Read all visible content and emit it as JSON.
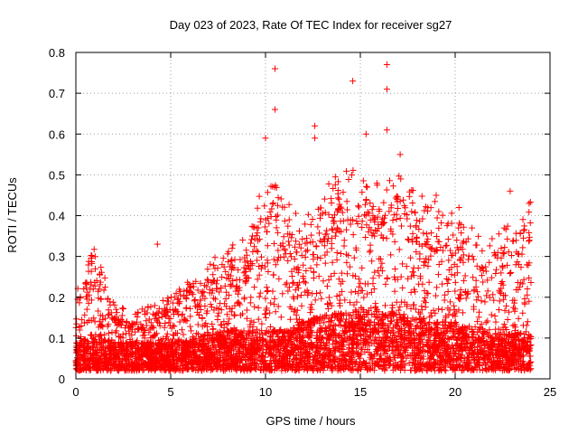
{
  "chart_data": {
    "type": "scatter",
    "title": "Day 023 of 2023, Rate Of TEC Index for receiver sg27",
    "xlabel": "GPS time / hours",
    "ylabel": "ROTI / TECUs",
    "xlim": [
      0,
      25
    ],
    "ylim": [
      0,
      0.8
    ],
    "xticks": [
      0,
      5,
      10,
      15,
      20,
      25
    ],
    "yticks": [
      0,
      0.1,
      0.2,
      0.3,
      0.4,
      0.5,
      0.6,
      0.7,
      0.8
    ],
    "xtick_labels": [
      "0",
      "5",
      "10",
      "15",
      "20",
      "25"
    ],
    "ytick_labels": [
      "0",
      "0.1",
      "0.2",
      "0.3",
      "0.4",
      "0.5",
      "0.6",
      "0.7",
      "0.8"
    ],
    "grid": true,
    "marker": "+",
    "color": "#ff0000",
    "envelope": [
      {
        "x": 0.0,
        "base": 0.05,
        "upper": 0.2
      },
      {
        "x": 1.0,
        "base": 0.06,
        "upper": 0.28
      },
      {
        "x": 2.0,
        "base": 0.05,
        "upper": 0.16
      },
      {
        "x": 3.0,
        "base": 0.05,
        "upper": 0.14
      },
      {
        "x": 4.0,
        "base": 0.05,
        "upper": 0.16
      },
      {
        "x": 5.0,
        "base": 0.05,
        "upper": 0.18
      },
      {
        "x": 6.0,
        "base": 0.06,
        "upper": 0.22
      },
      {
        "x": 7.0,
        "base": 0.07,
        "upper": 0.25
      },
      {
        "x": 8.0,
        "base": 0.08,
        "upper": 0.28
      },
      {
        "x": 9.0,
        "base": 0.08,
        "upper": 0.3
      },
      {
        "x": 10.0,
        "base": 0.08,
        "upper": 0.45
      },
      {
        "x": 11.0,
        "base": 0.08,
        "upper": 0.38
      },
      {
        "x": 12.0,
        "base": 0.1,
        "upper": 0.35
      },
      {
        "x": 13.0,
        "base": 0.12,
        "upper": 0.4
      },
      {
        "x": 14.0,
        "base": 0.12,
        "upper": 0.45
      },
      {
        "x": 15.0,
        "base": 0.13,
        "upper": 0.45
      },
      {
        "x": 16.0,
        "base": 0.13,
        "upper": 0.42
      },
      {
        "x": 17.0,
        "base": 0.12,
        "upper": 0.45
      },
      {
        "x": 18.0,
        "base": 0.11,
        "upper": 0.4
      },
      {
        "x": 19.0,
        "base": 0.1,
        "upper": 0.38
      },
      {
        "x": 20.0,
        "base": 0.1,
        "upper": 0.35
      },
      {
        "x": 21.0,
        "base": 0.08,
        "upper": 0.32
      },
      {
        "x": 22.0,
        "base": 0.07,
        "upper": 0.3
      },
      {
        "x": 23.0,
        "base": 0.07,
        "upper": 0.35
      },
      {
        "x": 24.0,
        "base": 0.07,
        "upper": 0.38
      }
    ],
    "outliers": [
      {
        "x": 4.3,
        "y": 0.33
      },
      {
        "x": 10.0,
        "y": 0.59
      },
      {
        "x": 10.5,
        "y": 0.76
      },
      {
        "x": 10.5,
        "y": 0.66
      },
      {
        "x": 12.6,
        "y": 0.62
      },
      {
        "x": 12.6,
        "y": 0.59
      },
      {
        "x": 14.6,
        "y": 0.73
      },
      {
        "x": 15.3,
        "y": 0.6
      },
      {
        "x": 16.4,
        "y": 0.77
      },
      {
        "x": 16.4,
        "y": 0.71
      },
      {
        "x": 16.4,
        "y": 0.61
      },
      {
        "x": 17.1,
        "y": 0.55
      },
      {
        "x": 19.0,
        "y": 0.45
      },
      {
        "x": 20.2,
        "y": 0.42
      },
      {
        "x": 22.9,
        "y": 0.46
      },
      {
        "x": 23.9,
        "y": 0.43
      }
    ]
  }
}
